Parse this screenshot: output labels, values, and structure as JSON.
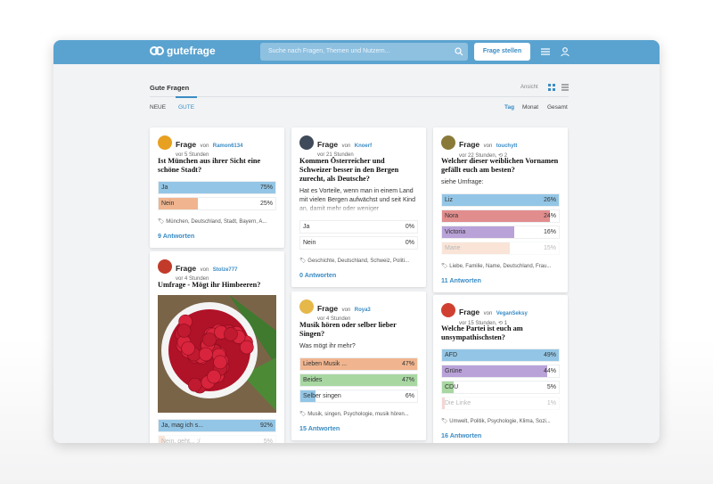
{
  "header": {
    "logo": "gutefrage",
    "search_placeholder": "Suche nach Fragen, Themen und Nutzern...",
    "button": "Frage stellen"
  },
  "section": {
    "title": "Gute Fragen",
    "view_label": "Ansicht",
    "tabs": [
      "NEUE",
      "GUTE"
    ],
    "active_tab": 1,
    "periods": [
      "Tag",
      "Monat",
      "Gesamt"
    ],
    "active_period": 0
  },
  "cards": [
    {
      "kind": "Frage",
      "by": "von",
      "user": "Ramon6134",
      "time": "vor 5 Stunden",
      "title": "Ist München aus ihrer Sicht eine schöne Stadt?",
      "options": [
        {
          "label": "Ja",
          "value": 75,
          "value_label": "75%",
          "color": "#93c6e6"
        },
        {
          "label": "Nein",
          "value": 25,
          "value_label": "25%",
          "color": "#f0b58f"
        }
      ],
      "tags": "München, Deutschland, Stadt, Bayern, A...",
      "answers": "9 Antworten"
    },
    {
      "kind": "Frage",
      "by": "von",
      "user": "Stolze777",
      "time": "vor 4 Stunden",
      "title": "Umfrage - Mögt ihr Himbeeren?",
      "options": [
        {
          "label": "Ja, mag ich s...",
          "value": 92,
          "value_label": "92%",
          "color": "#93c6e6"
        },
        {
          "label": "Nein, geht... :/",
          "value": 5,
          "value_label": "5%",
          "color": "#f0b58f"
        }
      ]
    },
    {
      "kind": "Frage",
      "by": "von",
      "user": "Knoerf",
      "time": "vor 21 Stunden",
      "title": "Kommen Österreicher und Schweizer besser in den Bergen zurecht, als Deutsche?",
      "body": "Hat es Vorteile, wenn man in einem Land mit vielen Bergen aufwächst und seit Kind an, damit mehr oder weniger",
      "options": [
        {
          "label": "Ja",
          "value": 0,
          "value_label": "0%",
          "color": "#93c6e6"
        },
        {
          "label": "Nein",
          "value": 0,
          "value_label": "0%",
          "color": "#f0b58f"
        }
      ],
      "tags": "Geschichte, Deutschland, Schweiz, Politi...",
      "answers": "0 Antworten"
    },
    {
      "kind": "Frage",
      "by": "von",
      "user": "Roya3",
      "time": "vor 4 Stunden",
      "title": "Musik hören oder selber lieber Singen?",
      "body": "Was mögt ihr mehr?",
      "options": [
        {
          "label": "Lieben Musik ...",
          "value": 47,
          "value_label": "47%",
          "color": "#f0b58f"
        },
        {
          "label": "Beides",
          "value": 47,
          "value_label": "47%",
          "color": "#a8d7a2"
        },
        {
          "label": "Selber singen",
          "value": 6,
          "value_label": "6%",
          "color": "#93c6e6"
        }
      ],
      "tags": "Musik, singen, Psychologie, musik hören...",
      "answers": "15 Antworten"
    },
    {
      "kind": "Frage",
      "by": "von",
      "user": "touchytt",
      "time": "vor 22 Stunden,",
      "shares": "2",
      "title": "Welcher dieser weiblichen Vornamen gefällt euch am besten?",
      "body": "siehe Umfrage:",
      "options": [
        {
          "label": "Liz",
          "value": 26,
          "value_label": "26%",
          "color": "#93c6e6"
        },
        {
          "label": "Nora",
          "value": 24,
          "value_label": "24%",
          "color": "#e28d8d"
        },
        {
          "label": "Victoria",
          "value": 16,
          "value_label": "16%",
          "color": "#b9a2d8"
        },
        {
          "label": "Marie",
          "value": 15,
          "value_label": "15%",
          "color": "#f0b58f"
        }
      ],
      "tags": "Liebe, Familie, Name, Deutschland, Frau...",
      "answers": "11 Antworten"
    },
    {
      "kind": "Frage",
      "by": "von",
      "user": "VeganSeksy",
      "time": "vor 15 Stunden,",
      "shares": "1",
      "title": "Welche Partei ist euch am unsympathischsten?",
      "options": [
        {
          "label": "AFD",
          "value": 49,
          "value_label": "49%",
          "color": "#93c6e6"
        },
        {
          "label": "Grüne",
          "value": 44,
          "value_label": "44%",
          "color": "#b9a2d8"
        },
        {
          "label": "CDU",
          "value": 5,
          "value_label": "5%",
          "color": "#a8d7a2"
        },
        {
          "label": "Die Linke",
          "value": 1,
          "value_label": "1%",
          "color": "#e28d8d"
        }
      ],
      "tags": "Umwelt, Politik, Psychologie, Klima, Sozi...",
      "answers": "16 Antworten"
    }
  ]
}
